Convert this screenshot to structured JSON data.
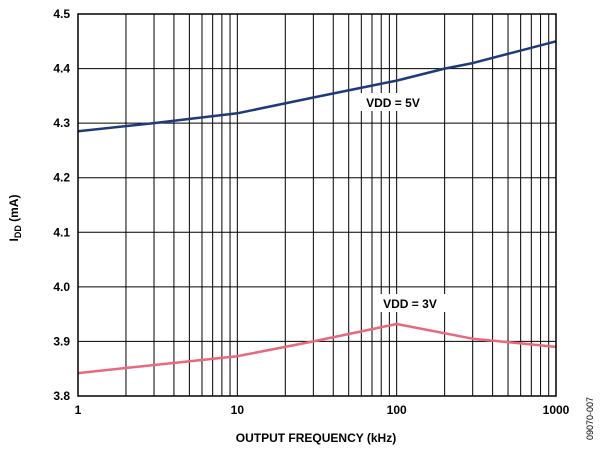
{
  "chart_data": {
    "type": "line",
    "title": "",
    "xlabel": "OUTPUT FREQUENCY (kHz)",
    "ylabel": "I",
    "ylabel_sub": "DD",
    "ylabel_unit": " (mA)",
    "x_scale": "log",
    "xlim": [
      1,
      1000
    ],
    "ylim": [
      3.8,
      4.5
    ],
    "x_ticks": [
      1,
      10,
      100,
      1000
    ],
    "x_tick_labels": [
      "1",
      "10",
      "100",
      "1000"
    ],
    "y_ticks": [
      3.8,
      3.9,
      4.0,
      4.1,
      4.2,
      4.3,
      4.4,
      4.5
    ],
    "y_tick_labels": [
      "3.8",
      "3.9",
      "4.0",
      "4.1",
      "4.2",
      "4.3",
      "4.4",
      "4.5"
    ],
    "grid": true,
    "series": [
      {
        "name": "VDD = 5V",
        "color": "#1f3a7a",
        "x": [
          1,
          3,
          10,
          30,
          100,
          200,
          300,
          1000
        ],
        "y": [
          4.285,
          4.3,
          4.318,
          4.347,
          4.378,
          4.4,
          4.41,
          4.45
        ]
      },
      {
        "name": "VDD = 3V",
        "color": "#e8697e",
        "x": [
          1,
          10,
          30,
          100,
          300,
          1000
        ],
        "y": [
          3.842,
          3.873,
          3.9,
          3.932,
          3.905,
          3.89
        ]
      }
    ],
    "annotations": [
      "VDD = 5V",
      "VDD = 3V"
    ],
    "figure_id": "09070-007"
  }
}
